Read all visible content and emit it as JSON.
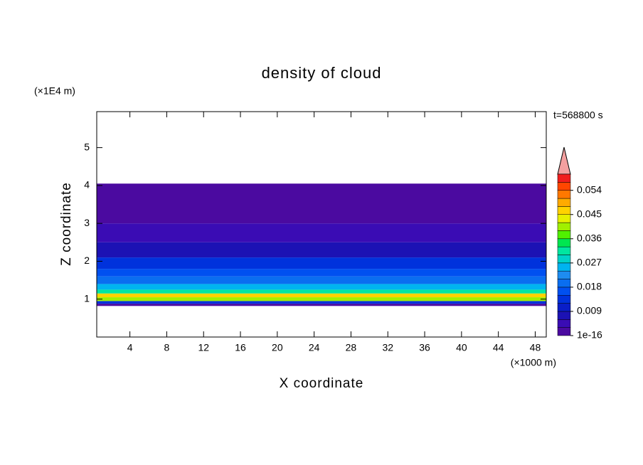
{
  "chart_data": {
    "type": "contour",
    "title": "density of cloud",
    "x_label": "X coordinate",
    "y_label": "Z coordinate",
    "x_unit": "(×1000 m)",
    "y_unit": "(×1E4 m)",
    "time_label": "t=568800 s",
    "xlim": [
      0.4,
      49.2
    ],
    "ylim": [
      0,
      5.95
    ],
    "xticks": [
      4,
      8,
      12,
      16,
      20,
      24,
      28,
      32,
      36,
      40,
      44,
      48
    ],
    "yticks": [
      1,
      2,
      3,
      4,
      5
    ],
    "z_edges": [
      0.82,
      0.88,
      0.95,
      1.05,
      1.15,
      1.25,
      1.4,
      1.6,
      1.8,
      2.1,
      2.5,
      3.0,
      4.05
    ],
    "values": [
      0.002,
      0.012,
      0.04,
      0.046,
      0.03,
      0.024,
      0.02,
      0.016,
      0.012,
      0.008,
      0.005,
      0.001
    ],
    "levels": [
      1e-16,
      0.003,
      0.006,
      0.009,
      0.012,
      0.015,
      0.018,
      0.021,
      0.024,
      0.027,
      0.03,
      0.033,
      0.036,
      0.039,
      0.042,
      0.045,
      0.048,
      0.051,
      0.054,
      0.057,
      0.06
    ],
    "colors": [
      "#4b0aa0",
      "#3a0cb4",
      "#1c12b4",
      "#0a1ec8",
      "#0032dc",
      "#0050f0",
      "#0a6ef0",
      "#1e8cf0",
      "#00b4f0",
      "#00d2c8",
      "#00e6a0",
      "#00e650",
      "#50f000",
      "#a0f000",
      "#e6f000",
      "#ffd200",
      "#ffaa00",
      "#ff7800",
      "#ff4600",
      "#f01e1e"
    ],
    "cticks": [
      1e-16,
      0.009,
      0.018,
      0.027,
      0.036,
      0.045,
      0.054
    ]
  }
}
